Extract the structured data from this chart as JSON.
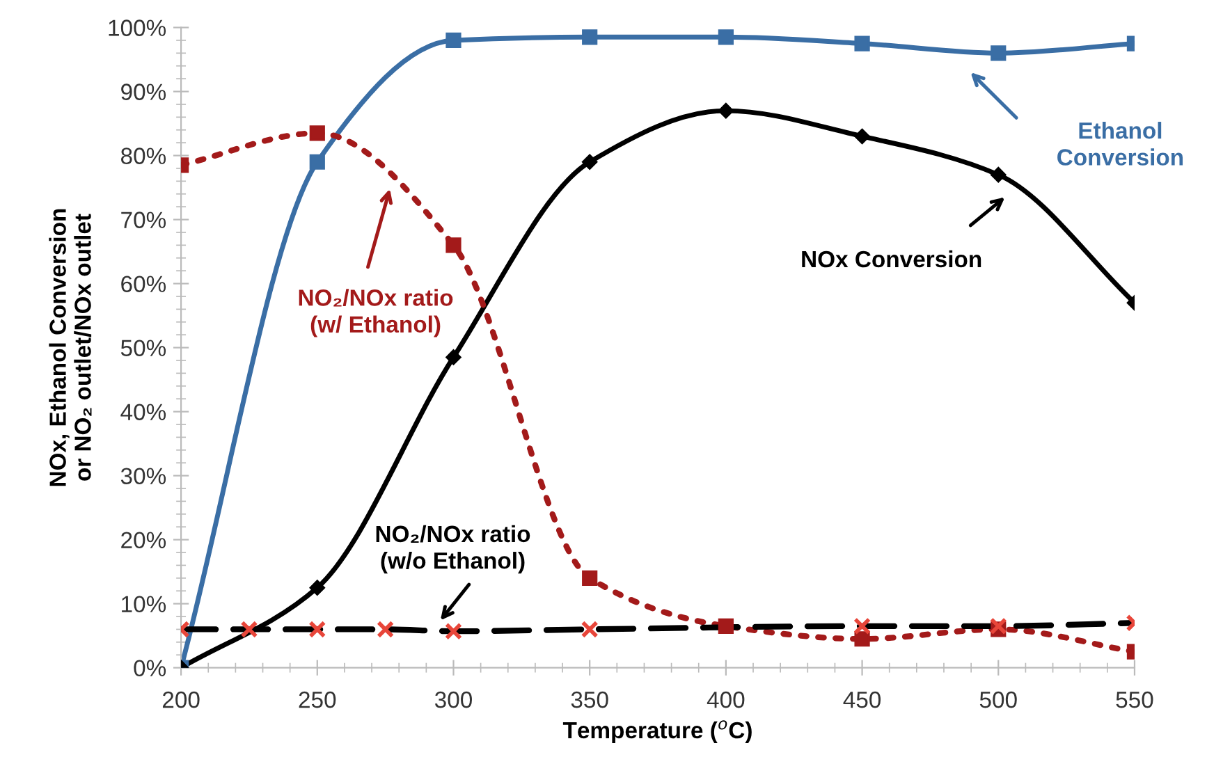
{
  "chart_data": {
    "type": "line",
    "xlabel": "Temperature ($^{o}$C)",
    "ylabel": "NOx, Ethanol Conversion\nor NO₂ outlet/NOx outlet",
    "xlim": [
      200,
      550
    ],
    "xticks": [
      200,
      250,
      300,
      350,
      400,
      450,
      500,
      550
    ],
    "ylim": [
      0,
      100
    ],
    "yticks": [
      {
        "value": 0,
        "label": "0%"
      },
      {
        "value": 10,
        "label": "10%"
      },
      {
        "value": 20,
        "label": "20%"
      },
      {
        "value": 30,
        "label": "30%"
      },
      {
        "value": 40,
        "label": "40%"
      },
      {
        "value": 50,
        "label": "50%"
      },
      {
        "value": 60,
        "label": "60%"
      },
      {
        "value": 70,
        "label": "70%"
      },
      {
        "value": 80,
        "label": "80%"
      },
      {
        "value": 90,
        "label": "90%"
      },
      {
        "value": 100,
        "label": "100%"
      }
    ],
    "grid": false,
    "legend": false,
    "series": [
      {
        "color": "#3a6ea5",
        "marker": "square",
        "line_style": "solid",
        "x": [
          200,
          250,
          300,
          350,
          400,
          450,
          500,
          550
        ],
        "values": [
          0,
          79,
          98,
          98.5,
          98.5,
          97.5,
          96,
          97.5
        ]
      },
      {
        "color": "#000000",
        "marker": "diamond",
        "line_style": "solid",
        "x": [
          200,
          250,
          300,
          350,
          400,
          450,
          500,
          550
        ],
        "values": [
          0,
          12.5,
          48.5,
          79,
          87,
          83,
          77,
          57
        ]
      },
      {
        "color": "#a31a1a",
        "marker": "square",
        "line_style": "dotted",
        "x": [
          200,
          250,
          300,
          350,
          400,
          450,
          500,
          550
        ],
        "values": [
          78.5,
          83.5,
          66,
          14,
          6.5,
          4.5,
          6,
          2.5
        ]
      },
      {
        "color": "#000000",
        "colors": [
          "#e8463a",
          "#e8463a",
          "#e8463a",
          "#e8463a",
          "#e8463a",
          "#e8463a",
          "#e8463a",
          "#e8463a",
          "#e8463a"
        ],
        "marker": "cross",
        "line_style": "dashed",
        "x": [
          200,
          225,
          250,
          275,
          300,
          350,
          450,
          500,
          550
        ],
        "values": [
          6,
          6,
          6,
          6,
          5.7,
          6,
          6.5,
          6.5,
          7
        ]
      }
    ],
    "annotations": [
      "Ethanol\nConversion",
      "NOx Conversion",
      "NO₂/NOx ratio\n(w/ Ethanol)",
      "NO₂/NOx ratio\n(w/o Ethanol)"
    ]
  }
}
